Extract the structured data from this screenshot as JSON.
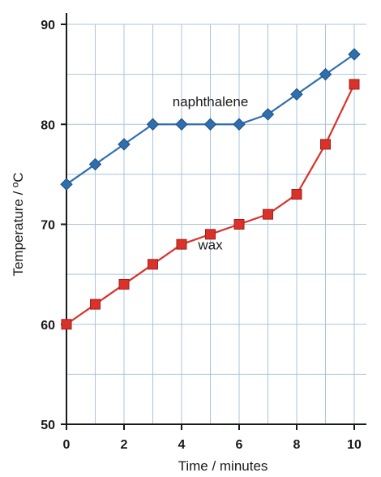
{
  "chart_data": {
    "type": "line",
    "title": "",
    "xlabel": "Time / minutes",
    "ylabel": "Temperature / ºC",
    "xlim": [
      0,
      10
    ],
    "ylim": [
      50,
      90
    ],
    "x_ticks": [
      "0",
      "2",
      "4",
      "6",
      "8",
      "10"
    ],
    "y_ticks": [
      "50",
      "60",
      "70",
      "80",
      "90"
    ],
    "grid": true,
    "x": [
      0,
      1,
      2,
      3,
      4,
      5,
      6,
      7,
      8,
      9,
      10
    ],
    "series": [
      {
        "name": "naphthalene",
        "color": "#2f6fae",
        "marker": "diamond",
        "values": [
          74,
          76,
          78,
          80,
          80,
          80,
          80,
          81,
          83,
          85,
          87
        ]
      },
      {
        "name": "wax",
        "color": "#d8322a",
        "marker": "square",
        "values": [
          60,
          62,
          64,
          66,
          68,
          69,
          70,
          71,
          73,
          78,
          84
        ]
      }
    ],
    "annotations": [
      {
        "text": "naphthalene",
        "x": 5,
        "y": 81.8
      },
      {
        "text": "wax",
        "x": 5,
        "y": 67.5
      }
    ],
    "colors": {
      "grid": "#a9c4dc",
      "axis": "#1a1a1a"
    }
  }
}
